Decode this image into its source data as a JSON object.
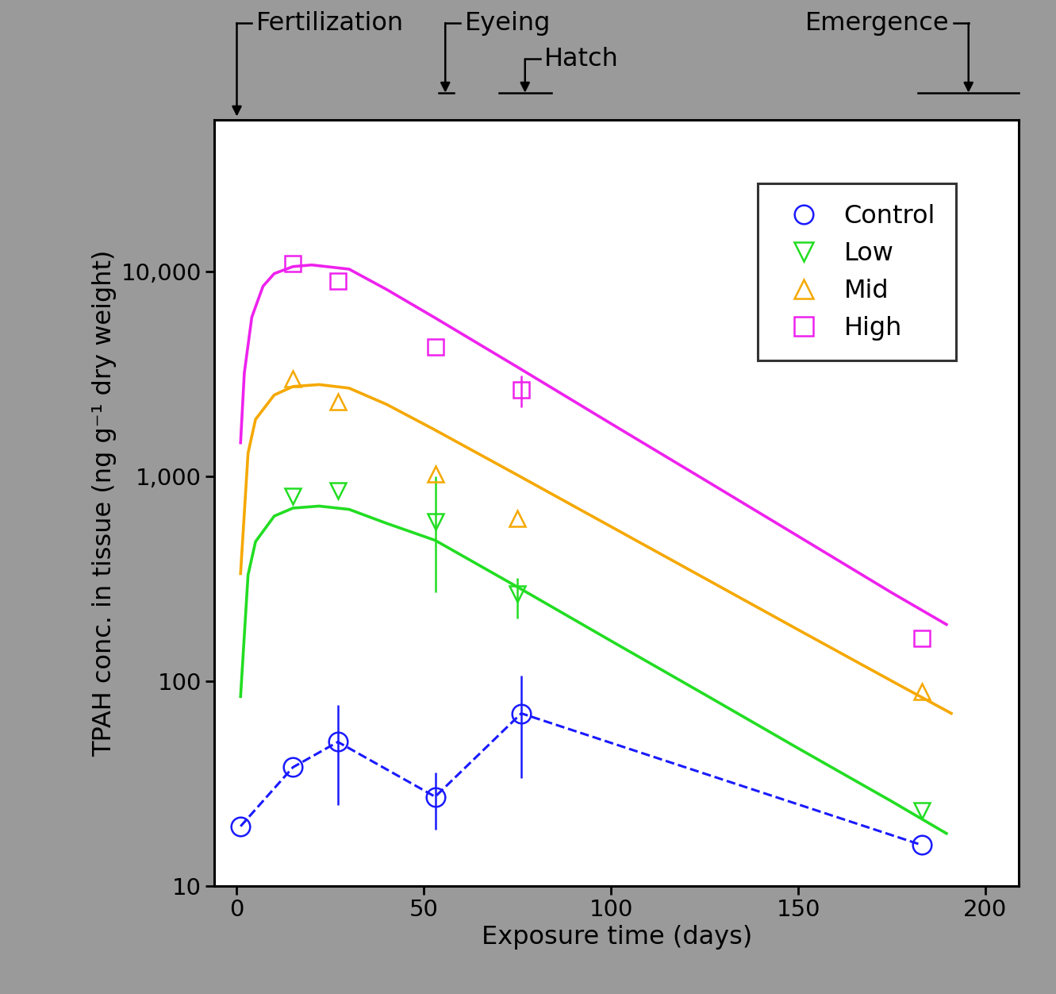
{
  "chart_data": {
    "type": "line",
    "xlabel": "Exposure time (days)",
    "ylabel": "TPAH conc. in tissue (ng g⁻¹ dry weight)",
    "log": "y",
    "xlim": [
      -6,
      209
    ],
    "ylim": [
      10,
      55000
    ],
    "xticks": [
      0,
      50,
      100,
      150,
      200
    ],
    "yticks": [
      10,
      100,
      {
        "value": 1000,
        "label": "1,000"
      },
      {
        "value": 10000,
        "label": "10,000"
      }
    ],
    "legend": "upper right",
    "grid": false,
    "stages": [
      {
        "label": "Fertilization",
        "x": 0,
        "range": null
      },
      {
        "label": "Eyeing",
        "x": 55.7,
        "range": [
          54,
          58
        ]
      },
      {
        "label": "Hatch",
        "x": 77,
        "range": [
          70,
          84
        ]
      },
      {
        "label": "Emergence",
        "x": 195.5,
        "range": [
          182,
          209
        ]
      }
    ],
    "series": [
      {
        "name": "Control",
        "color": "#1a1aff",
        "marker": "circle",
        "line_style": "dashed",
        "x": [
          1,
          15,
          27,
          53,
          76,
          183
        ],
        "values": [
          19.5,
          37.9,
          50.4,
          27.2,
          69.5,
          15.8
        ],
        "error_low": [
          null,
          null,
          24.7,
          18.7,
          33.7,
          null
        ],
        "error_high": [
          null,
          null,
          76.5,
          35.6,
          106,
          null
        ]
      },
      {
        "name": "Low",
        "color": "#22dd22",
        "marker": "triangle_down",
        "line_style": "solid",
        "x": [
          15,
          27,
          53,
          75,
          183
        ],
        "values": [
          797,
          849,
          599,
          266,
          23.2
        ],
        "error_low": [
          null,
          null,
          272,
          203,
          null
        ],
        "error_high": [
          null,
          null,
          1000,
          318,
          null
        ],
        "fit_x": [
          1,
          3,
          5,
          10,
          15,
          22,
          30,
          40,
          53,
          75,
          100,
          125,
          150,
          175,
          189.6
        ],
        "fit_values": [
          84,
          330,
          480,
          640,
          700,
          716,
          690,
          590,
          487,
          288,
          157,
          86,
          46.9,
          25.8,
          18.0
        ]
      },
      {
        "name": "Mid",
        "color": "#f5a800",
        "marker": "triangle_up",
        "line_style": "solid",
        "x": [
          15,
          27,
          53,
          75,
          183
        ],
        "values": [
          2990,
          2310,
          1030,
          621,
          88.5
        ],
        "error_low": [
          null,
          null,
          null,
          null,
          null
        ],
        "error_high": [
          null,
          null,
          null,
          null,
          null
        ],
        "fit_x": [
          1,
          3,
          5,
          10,
          15,
          22,
          30,
          40,
          52.6,
          75,
          100,
          125,
          150,
          175,
          190.9
        ],
        "fit_values": [
          335,
          1300,
          1900,
          2500,
          2750,
          2810,
          2700,
          2250,
          1700,
          1015,
          568,
          318,
          178,
          100,
          69.5
        ]
      },
      {
        "name": "High",
        "color": "#ee22ee",
        "marker": "square",
        "line_style": "solid",
        "x": [
          15,
          27,
          53,
          76,
          183
        ],
        "values": [
          11000,
          8980,
          4310,
          2640,
          162
        ],
        "error_low": [
          null,
          null,
          null,
          2170,
          null
        ],
        "error_high": [
          null,
          null,
          null,
          3110,
          null
        ],
        "fit_x": [
          1,
          2,
          4,
          7,
          10,
          15,
          20,
          30,
          40,
          53,
          75,
          100,
          125,
          150,
          175,
          189.6
        ],
        "fit_values": [
          1460,
          3200,
          6000,
          8500,
          9800,
          10600,
          10800,
          10300,
          8200,
          5950,
          3420,
          1810,
          962,
          510,
          270,
          189
        ]
      }
    ]
  }
}
